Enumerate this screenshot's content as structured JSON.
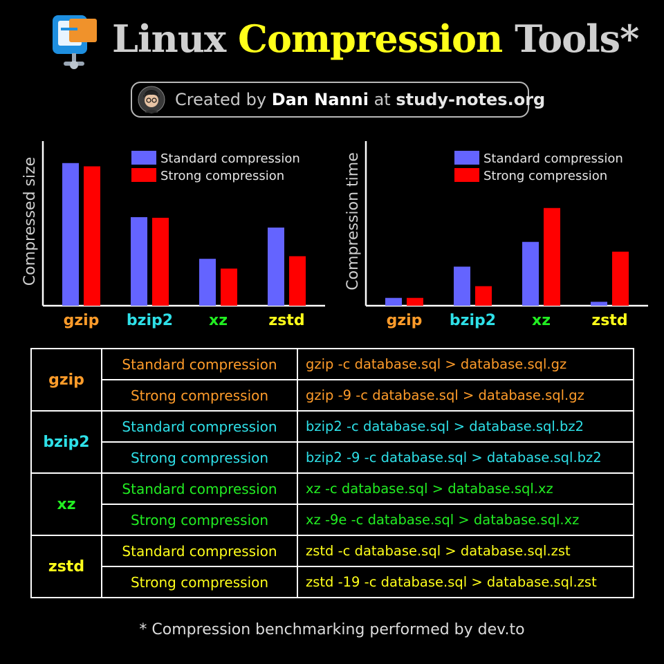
{
  "title": {
    "word1": "Linux",
    "word2": "Compression",
    "word3": "Tools*"
  },
  "credit": {
    "prefix": "Created by",
    "author": "Dan Nanni",
    "mid": "at",
    "site": "study-notes.org"
  },
  "colors": {
    "standard": "#6464ff",
    "strong": "#ff0000",
    "gzip": "#ff9c2a",
    "bzip2": "#2ee0e8",
    "xz": "#22ee22",
    "zstd": "#ffff1a",
    "title_highlight": "#ffff1a"
  },
  "legend": {
    "standard": "Standard compression",
    "strong": "Strong compression"
  },
  "chart_data": [
    {
      "type": "bar",
      "ylabel": "Compressed size",
      "xlabel": "",
      "categories": [
        "gzip",
        "bzip2",
        "xz",
        "zstd"
      ],
      "series": [
        {
          "name": "Standard compression",
          "values": [
            219,
            136,
            72,
            120
          ]
        },
        {
          "name": "Strong compression",
          "values": [
            214,
            135,
            57,
            76
          ]
        }
      ],
      "ylim": [
        0,
        240
      ],
      "legend_position": "top-right",
      "grid": false
    },
    {
      "type": "bar",
      "ylabel": "Compression time",
      "xlabel": "",
      "categories": [
        "gzip",
        "bzip2",
        "xz",
        "zstd"
      ],
      "series": [
        {
          "name": "Standard compression",
          "values": [
            12,
            60,
            98,
            6
          ]
        },
        {
          "name": "Strong compression",
          "values": [
            12,
            30,
            150,
            83
          ]
        }
      ],
      "ylim": [
        0,
        240
      ],
      "legend_position": "top-right",
      "grid": false
    }
  ],
  "table": {
    "tools": [
      {
        "name": "gzip",
        "rows": [
          {
            "level": "Standard compression",
            "cmd": "gzip -c database.sql > database.sql.gz"
          },
          {
            "level": "Strong compression",
            "cmd": "gzip -9 -c database.sql > database.sql.gz"
          }
        ]
      },
      {
        "name": "bzip2",
        "rows": [
          {
            "level": "Standard compression",
            "cmd": "bzip2 -c database.sql > database.sql.bz2"
          },
          {
            "level": "Strong compression",
            "cmd": "bzip2 -9 -c database.sql > database.sql.bz2"
          }
        ]
      },
      {
        "name": "xz",
        "rows": [
          {
            "level": "Standard compression",
            "cmd": "xz -c database.sql > database.sql.xz"
          },
          {
            "level": "Strong compression",
            "cmd": "xz -9e -c database.sql > database.sql.xz"
          }
        ]
      },
      {
        "name": "zstd",
        "rows": [
          {
            "level": "Standard compression",
            "cmd": "zstd -c database.sql > database.sql.zst"
          },
          {
            "level": "Strong compression",
            "cmd": "zstd -19 -c database.sql > database.sql.zst"
          }
        ]
      }
    ]
  },
  "footnote": "* Compression benchmarking performed by dev.to"
}
